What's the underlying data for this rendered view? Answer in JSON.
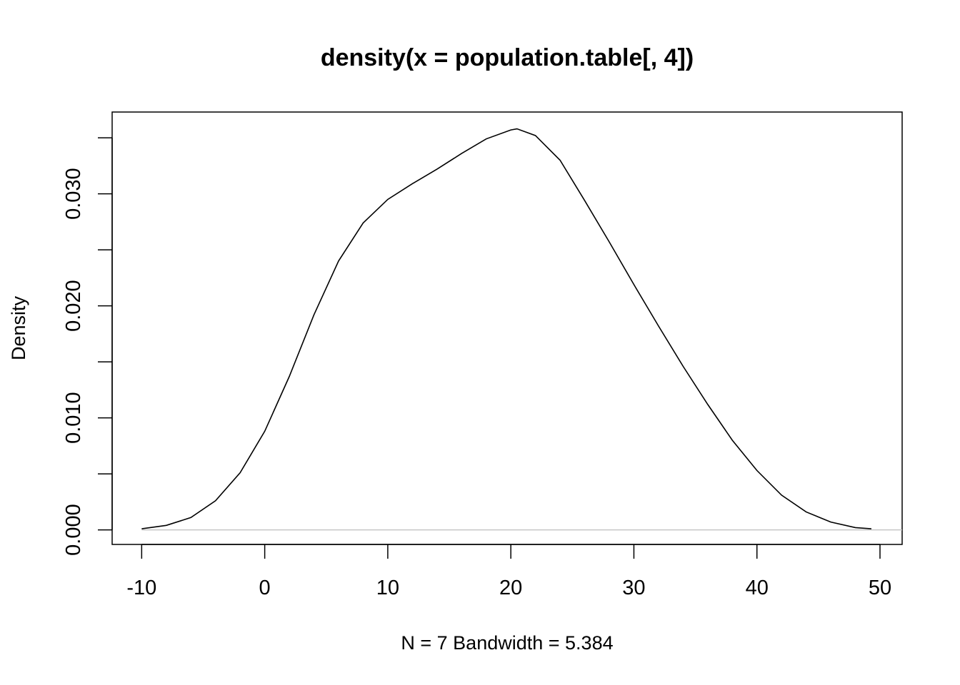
{
  "chart_data": {
    "type": "line",
    "title": "density(x = population.table[, 4])",
    "xlabel": "N = 7   Bandwidth = 5.384",
    "ylabel": "Density",
    "xlim": [
      -12.4,
      51.8
    ],
    "ylim": [
      -0.0013,
      0.0373
    ],
    "x_ticks": [
      -10,
      0,
      10,
      20,
      30,
      40,
      50
    ],
    "x_tick_labels": [
      "-10",
      "0",
      "10",
      "20",
      "30",
      "40",
      "50"
    ],
    "y_ticks": [
      0.0,
      0.005,
      0.01,
      0.015,
      0.02,
      0.025,
      0.03,
      0.035
    ],
    "y_tick_labels": [
      "0.000",
      "",
      "0.010",
      "",
      "0.020",
      "",
      "0.030",
      ""
    ],
    "grid": false,
    "legend": "none",
    "baseline": 0,
    "colors": {
      "line": "#000000",
      "baseline": "#bebebe",
      "frame": "#000000"
    },
    "series": [
      {
        "x": [
          -10,
          -8,
          -6,
          -4,
          -2,
          0,
          2,
          4,
          6,
          8,
          10,
          12,
          14,
          16,
          18,
          20,
          20.5,
          22,
          24,
          26,
          28,
          30,
          32,
          34,
          36,
          38,
          40,
          42,
          44,
          46,
          48,
          49.3
        ],
        "y": [
          0.0001,
          0.0004,
          0.0011,
          0.0026,
          0.0051,
          0.0088,
          0.0137,
          0.0192,
          0.024,
          0.0274,
          0.0295,
          0.0309,
          0.0322,
          0.0336,
          0.0349,
          0.0357,
          0.0358,
          0.0352,
          0.033,
          0.0294,
          0.0257,
          0.0219,
          0.0182,
          0.0146,
          0.0112,
          0.008,
          0.0053,
          0.0031,
          0.0016,
          0.0007,
          0.0002,
          0.0001
        ]
      }
    ]
  }
}
